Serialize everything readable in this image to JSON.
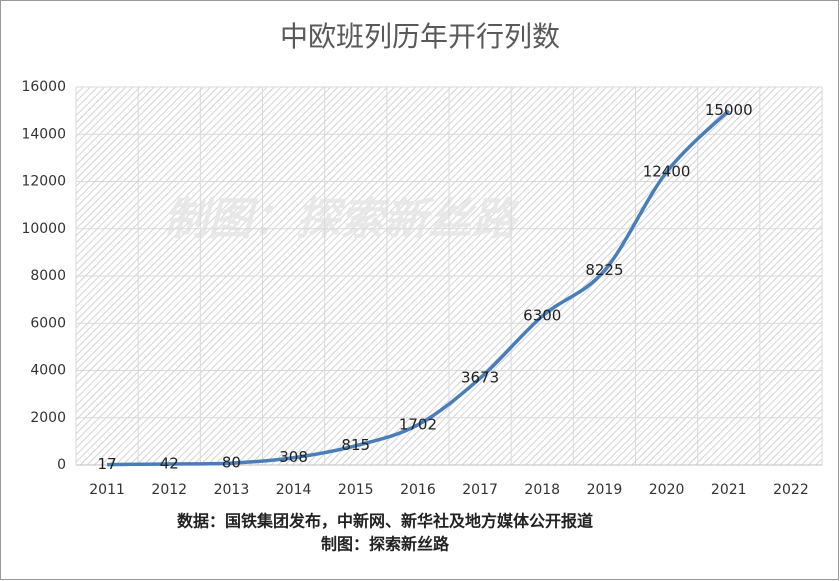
{
  "chart_data": {
    "type": "line",
    "title": "中欧班列历年开行列数",
    "categories": [
      "2011",
      "2012",
      "2013",
      "2014",
      "2015",
      "2016",
      "2017",
      "2018",
      "2019",
      "2020",
      "2021",
      "2022"
    ],
    "series": [
      {
        "name": "开行列数",
        "color": "#4a7ebb",
        "values": [
          17,
          42,
          80,
          308,
          815,
          1702,
          3673,
          6300,
          8225,
          12400,
          15000,
          null
        ]
      }
    ],
    "ylim": [
      0,
      16000
    ],
    "yticks": [
      0,
      2000,
      4000,
      6000,
      8000,
      10000,
      12000,
      14000,
      16000
    ],
    "grid": true,
    "watermark": "制图：探索新丝路",
    "source": "数据：国铁集团发布，中新网、新华社及地方媒体公开报道",
    "credit": "制图：探索新丝路"
  }
}
